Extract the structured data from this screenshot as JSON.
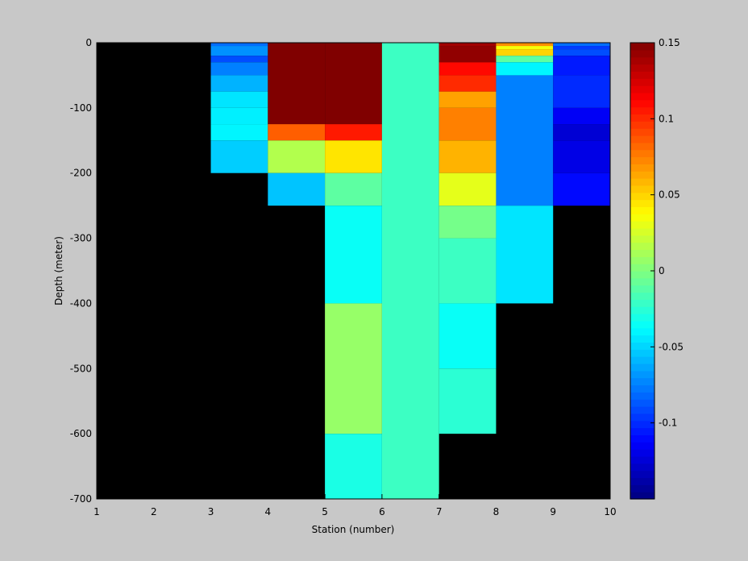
{
  "chart_data": {
    "type": "heatmap",
    "title": "",
    "xlabel": "Station (number)",
    "ylabel": "Depth (meter)",
    "xlim": [
      1,
      10
    ],
    "ylim": [
      -700,
      0
    ],
    "xticks": [
      1,
      2,
      3,
      4,
      5,
      6,
      7,
      8,
      9,
      10
    ],
    "yticks": [
      0,
      -100,
      -200,
      -300,
      -400,
      -500,
      -600,
      -700
    ],
    "background_color": "#000000",
    "colormap": "jet",
    "colorbar": {
      "limits": [
        -0.15,
        0.15
      ],
      "ticks": [
        0.15,
        0.1,
        0.05,
        0,
        -0.05,
        -0.1
      ],
      "tick_labels": [
        "0.15",
        "0.1",
        "0.05",
        "0",
        "-0.05",
        "-0.1"
      ],
      "placement": "right"
    },
    "cells": [
      {
        "x": [
          3,
          4
        ],
        "z": [
          -5,
          0
        ],
        "value": -0.08
      },
      {
        "x": [
          3,
          4
        ],
        "z": [
          -20,
          -5
        ],
        "value": -0.07
      },
      {
        "x": [
          3,
          4
        ],
        "z": [
          -30,
          -20
        ],
        "value": -0.09
      },
      {
        "x": [
          3,
          4
        ],
        "z": [
          -50,
          -30
        ],
        "value": -0.075
      },
      {
        "x": [
          3,
          4
        ],
        "z": [
          -75,
          -50
        ],
        "value": -0.06
      },
      {
        "x": [
          3,
          4
        ],
        "z": [
          -100,
          -75
        ],
        "value": -0.045
      },
      {
        "x": [
          3,
          4
        ],
        "z": [
          -125,
          -100
        ],
        "value": -0.042
      },
      {
        "x": [
          3,
          4
        ],
        "z": [
          -150,
          -125
        ],
        "value": -0.04
      },
      {
        "x": [
          3,
          4
        ],
        "z": [
          -200,
          -150
        ],
        "value": -0.052
      },
      {
        "x": [
          4,
          5
        ],
        "z": [
          -125,
          0
        ],
        "value": 0.15
      },
      {
        "x": [
          4,
          5
        ],
        "z": [
          -150,
          -125
        ],
        "value": 0.085
      },
      {
        "x": [
          4,
          5
        ],
        "z": [
          -200,
          -150
        ],
        "value": 0.015
      },
      {
        "x": [
          4,
          5
        ],
        "z": [
          -250,
          -200
        ],
        "value": -0.055
      },
      {
        "x": [
          5,
          6
        ],
        "z": [
          -125,
          0
        ],
        "value": 0.15
      },
      {
        "x": [
          5,
          6
        ],
        "z": [
          -150,
          -125
        ],
        "value": 0.105
      },
      {
        "x": [
          5,
          6
        ],
        "z": [
          -200,
          -150
        ],
        "value": 0.045
      },
      {
        "x": [
          5,
          6
        ],
        "z": [
          -250,
          -200
        ],
        "value": -0.01
      },
      {
        "x": [
          5,
          6
        ],
        "z": [
          -400,
          -250
        ],
        "value": -0.035
      },
      {
        "x": [
          5,
          6
        ],
        "z": [
          -600,
          -400
        ],
        "value": 0.007
      },
      {
        "x": [
          5,
          6
        ],
        "z": [
          -700,
          -600
        ],
        "value": -0.03
      },
      {
        "x": [
          6,
          7
        ],
        "z": [
          -700,
          0
        ],
        "value": -0.02
      },
      {
        "x": [
          7,
          8
        ],
        "z": [
          -5,
          0
        ],
        "value": 0.14
      },
      {
        "x": [
          7,
          8
        ],
        "z": [
          -30,
          -5
        ],
        "value": 0.145
      },
      {
        "x": [
          7,
          8
        ],
        "z": [
          -50,
          -30
        ],
        "value": 0.11
      },
      {
        "x": [
          7,
          8
        ],
        "z": [
          -75,
          -50
        ],
        "value": 0.1
      },
      {
        "x": [
          7,
          8
        ],
        "z": [
          -100,
          -75
        ],
        "value": 0.065
      },
      {
        "x": [
          7,
          8
        ],
        "z": [
          -150,
          -100
        ],
        "value": 0.075
      },
      {
        "x": [
          7,
          8
        ],
        "z": [
          -200,
          -150
        ],
        "value": 0.06
      },
      {
        "x": [
          7,
          8
        ],
        "z": [
          -250,
          -200
        ],
        "value": 0.03
      },
      {
        "x": [
          7,
          8
        ],
        "z": [
          -300,
          -250
        ],
        "value": -0.003
      },
      {
        "x": [
          7,
          8
        ],
        "z": [
          -400,
          -300
        ],
        "value": -0.02
      },
      {
        "x": [
          7,
          8
        ],
        "z": [
          -500,
          -400
        ],
        "value": -0.035
      },
      {
        "x": [
          7,
          8
        ],
        "z": [
          -600,
          -500
        ],
        "value": -0.025
      },
      {
        "x": [
          8,
          9
        ],
        "z": [
          -5,
          0
        ],
        "value": 0.07
      },
      {
        "x": [
          8,
          9
        ],
        "z": [
          -10,
          -5
        ],
        "value": 0.035
      },
      {
        "x": [
          8,
          9
        ],
        "z": [
          -20,
          -10
        ],
        "value": 0.05
      },
      {
        "x": [
          8,
          9
        ],
        "z": [
          -30,
          -20
        ],
        "value": -0.01
      },
      {
        "x": [
          8,
          9
        ],
        "z": [
          -50,
          -30
        ],
        "value": -0.04
      },
      {
        "x": [
          8,
          9
        ],
        "z": [
          -250,
          -50
        ],
        "value": -0.075
      },
      {
        "x": [
          8,
          9
        ],
        "z": [
          -400,
          -250
        ],
        "value": -0.045
      },
      {
        "x": [
          9,
          10
        ],
        "z": [
          -5,
          0
        ],
        "value": -0.08
      },
      {
        "x": [
          9,
          10
        ],
        "z": [
          -10,
          -5
        ],
        "value": -0.095
      },
      {
        "x": [
          9,
          10
        ],
        "z": [
          -20,
          -10
        ],
        "value": -0.09
      },
      {
        "x": [
          9,
          10
        ],
        "z": [
          -50,
          -20
        ],
        "value": -0.105
      },
      {
        "x": [
          9,
          10
        ],
        "z": [
          -100,
          -50
        ],
        "value": -0.1
      },
      {
        "x": [
          9,
          10
        ],
        "z": [
          -125,
          -100
        ],
        "value": -0.115
      },
      {
        "x": [
          9,
          10
        ],
        "z": [
          -150,
          -125
        ],
        "value": -0.125
      },
      {
        "x": [
          9,
          10
        ],
        "z": [
          -200,
          -150
        ],
        "value": -0.12
      },
      {
        "x": [
          9,
          10
        ],
        "z": [
          -250,
          -200
        ],
        "value": -0.11
      }
    ]
  }
}
